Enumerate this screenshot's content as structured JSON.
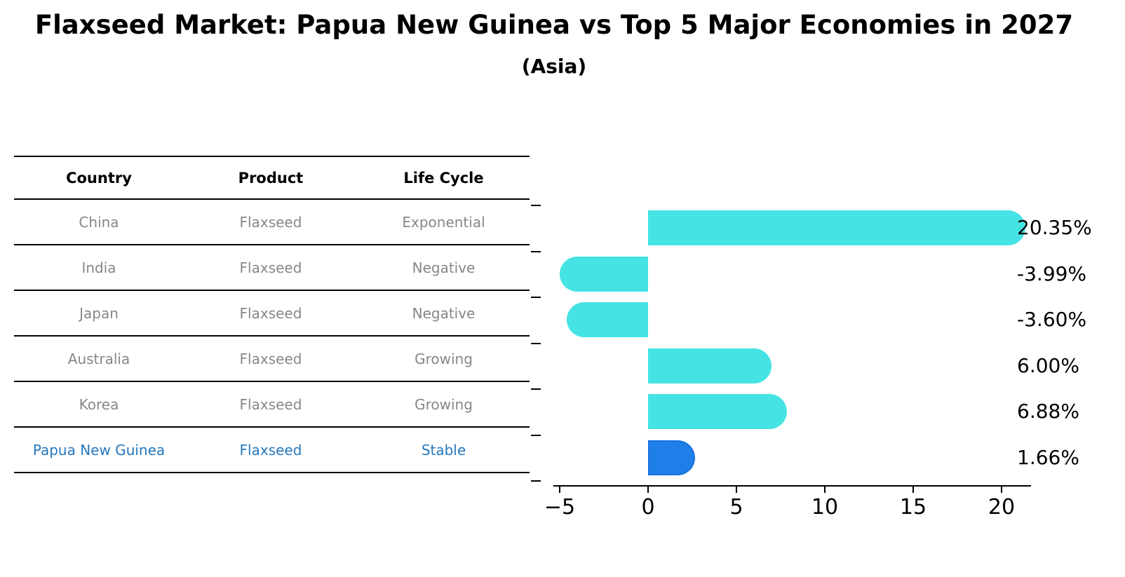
{
  "page": {
    "title": "Flaxseed Market: Papua New Guinea vs Top 5 Major Economies in 2027",
    "subtitle": "(Asia)"
  },
  "table": {
    "headers": [
      "Country",
      "Product",
      "Life Cycle"
    ],
    "rows": [
      {
        "country": "China",
        "product": "Flaxseed",
        "life_cycle": "Exponential",
        "highlight": false
      },
      {
        "country": "India",
        "product": "Flaxseed",
        "life_cycle": "Negative",
        "highlight": false
      },
      {
        "country": "Japan",
        "product": "Flaxseed",
        "life_cycle": "Negative",
        "highlight": false
      },
      {
        "country": "Australia",
        "product": "Flaxseed",
        "life_cycle": "Growing",
        "highlight": false
      },
      {
        "country": "Korea",
        "product": "Flaxseed",
        "life_cycle": "Growing",
        "highlight": false
      },
      {
        "country": "Papua New Guinea",
        "product": "Flaxseed",
        "life_cycle": "Stable",
        "highlight": true
      }
    ]
  },
  "chart_data": {
    "type": "bar",
    "orientation": "horizontal",
    "title": "Flaxseed Market: Papua New Guinea vs Top 5 Major Economies in 2027",
    "subtitle": "(Asia)",
    "categories": [
      "China",
      "India",
      "Japan",
      "Australia",
      "Korea",
      "Papua New Guinea"
    ],
    "values": [
      20.35,
      -3.99,
      -3.6,
      6.0,
      6.88,
      1.66
    ],
    "value_labels": [
      "20.35%",
      "-3.99%",
      "-3.60%",
      "6.00%",
      "6.88%",
      "1.66%"
    ],
    "x_ticks": [
      -5,
      0,
      5,
      10,
      15,
      20
    ],
    "x_tick_labels": [
      "−5",
      "0",
      "5",
      "10",
      "15",
      "20"
    ],
    "xlim": [
      -5.4,
      21.7
    ],
    "grid": false,
    "legend": false,
    "highlight_index": 5,
    "bar_color": "#45E3E3",
    "highlight_bar_color": "#1E7FE8",
    "highlight_border_color": "#1466D6",
    "highlight_text_color": "#2578BE",
    "axis_color": "#000000"
  }
}
